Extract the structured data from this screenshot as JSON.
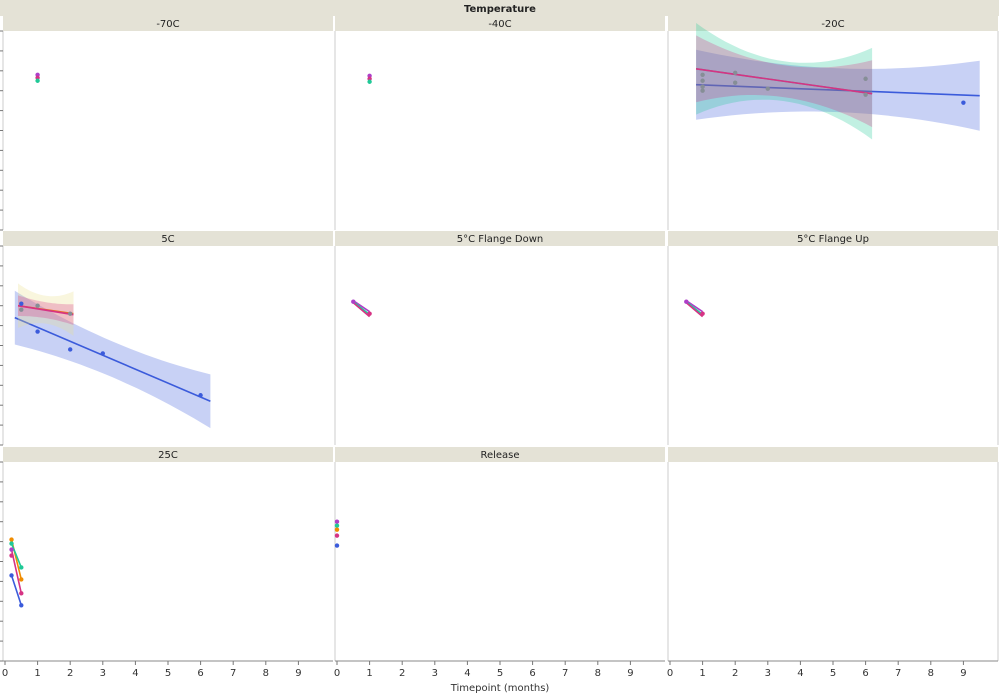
{
  "chart_data": {
    "type": "scatter",
    "title": "Temperature",
    "xlabel": "Timepoint (months)",
    "ylabel": "",
    "xlim": [
      0,
      10
    ],
    "ylim": [
      0,
      10
    ],
    "x_ticks": [
      0,
      1,
      2,
      3,
      4,
      5,
      6,
      7,
      8,
      9
    ],
    "grid": false,
    "colors": [
      "#3b5bdb",
      "#d63384",
      "#20c997",
      "#f08c00",
      "#ae3ec9",
      "#868e96"
    ],
    "panels": [
      {
        "label": "-70C",
        "points": [
          {
            "x": 1,
            "y": 7.8,
            "c": 4
          },
          {
            "x": 1,
            "y": 7.65,
            "c": 1
          },
          {
            "x": 1,
            "y": 7.5,
            "c": 2
          }
        ],
        "fits": []
      },
      {
        "label": "-40C",
        "points": [
          {
            "x": 1,
            "y": 7.75,
            "c": 4
          },
          {
            "x": 1,
            "y": 7.6,
            "c": 1
          },
          {
            "x": 1,
            "y": 7.45,
            "c": 2
          }
        ],
        "fits": []
      },
      {
        "label": "-20C",
        "points": [
          {
            "x": 1,
            "y": 7.8,
            "c": 5
          },
          {
            "x": 1,
            "y": 7.5,
            "c": 5
          },
          {
            "x": 1,
            "y": 7.2,
            "c": 5
          },
          {
            "x": 1,
            "y": 7.0,
            "c": 5
          },
          {
            "x": 2,
            "y": 7.9,
            "c": 5
          },
          {
            "x": 2,
            "y": 7.4,
            "c": 5
          },
          {
            "x": 3,
            "y": 7.1,
            "c": 5
          },
          {
            "x": 6,
            "y": 7.6,
            "c": 5
          },
          {
            "x": 6,
            "y": 6.8,
            "c": 5
          },
          {
            "x": 9,
            "y": 6.4,
            "c": 0
          }
        ],
        "fits": [
          {
            "x0": 0.8,
            "y0": 7.3,
            "x1": 9.5,
            "y1": 6.75,
            "c": 0,
            "band": 1.1,
            "flare": 0.6,
            "fill": "#3b5bdb"
          },
          {
            "x0": 0.8,
            "y0": 8.1,
            "x1": 6.2,
            "y1": 6.85,
            "c": 2,
            "band": 1.0,
            "flare": 1.3,
            "fill": "#20c997"
          },
          {
            "x0": 0.8,
            "y0": 8.1,
            "x1": 6.2,
            "y1": 6.85,
            "c": 1,
            "band": 0.8,
            "flare": 1.1,
            "fill": "#d63384"
          }
        ]
      },
      {
        "label": "5C",
        "points": [
          {
            "x": 0.5,
            "y": 7.1,
            "c": 0
          },
          {
            "x": 0.5,
            "y": 6.8,
            "c": 5
          },
          {
            "x": 1,
            "y": 5.7,
            "c": 0
          },
          {
            "x": 1,
            "y": 7.0,
            "c": 5
          },
          {
            "x": 2,
            "y": 4.8,
            "c": 0
          },
          {
            "x": 2,
            "y": 6.6,
            "c": 5
          },
          {
            "x": 3,
            "y": 4.6,
            "c": 0
          },
          {
            "x": 6,
            "y": 2.5,
            "c": 0
          }
        ],
        "fits": [
          {
            "x0": 0.3,
            "y0": 6.4,
            "x1": 6.3,
            "y1": 2.2,
            "c": 0,
            "band": 0.9,
            "flare": 0.5,
            "fill": "#3b5bdb"
          },
          {
            "x0": 0.4,
            "y0": 7.0,
            "x1": 2.1,
            "y1": 6.6,
            "c": 3,
            "band": 0.7,
            "flare": 0.6,
            "fill": "#e8e08a"
          },
          {
            "x0": 0.4,
            "y0": 7.0,
            "x1": 2.1,
            "y1": 6.55,
            "c": 1,
            "band": 0.4,
            "flare": 0.3,
            "fill": "#d63384"
          }
        ]
      },
      {
        "label": "5°C Flange Down",
        "points": [
          {
            "x": 0.5,
            "y": 7.2,
            "c": 4
          },
          {
            "x": 1,
            "y": 6.6,
            "c": 1
          }
        ],
        "lines": [
          {
            "x0": 0.5,
            "y0": 7.25,
            "x1": 1,
            "y1": 6.7,
            "c": 4
          },
          {
            "x0": 0.5,
            "y0": 7.2,
            "x1": 1,
            "y1": 6.55,
            "c": 2
          },
          {
            "x0": 0.5,
            "y0": 7.15,
            "x1": 1,
            "y1": 6.45,
            "c": 1
          }
        ],
        "fits": []
      },
      {
        "label": "5°C Flange Up",
        "points": [
          {
            "x": 0.5,
            "y": 7.2,
            "c": 4
          },
          {
            "x": 1,
            "y": 6.6,
            "c": 1
          }
        ],
        "lines": [
          {
            "x0": 0.5,
            "y0": 7.25,
            "x1": 1,
            "y1": 6.7,
            "c": 4
          },
          {
            "x0": 0.5,
            "y0": 7.2,
            "x1": 1,
            "y1": 6.55,
            "c": 2
          },
          {
            "x0": 0.5,
            "y0": 7.15,
            "x1": 1,
            "y1": 6.45,
            "c": 1
          }
        ],
        "fits": []
      },
      {
        "label": "25C",
        "points": [
          {
            "x": 0.2,
            "y": 6.1,
            "c": 3
          },
          {
            "x": 0.2,
            "y": 5.9,
            "c": 2
          },
          {
            "x": 0.2,
            "y": 5.6,
            "c": 4
          },
          {
            "x": 0.2,
            "y": 5.3,
            "c": 1
          },
          {
            "x": 0.2,
            "y": 4.3,
            "c": 0
          },
          {
            "x": 0.5,
            "y": 4.7,
            "c": 2
          },
          {
            "x": 0.5,
            "y": 4.1,
            "c": 3
          },
          {
            "x": 0.5,
            "y": 3.4,
            "c": 1
          },
          {
            "x": 0.5,
            "y": 2.8,
            "c": 0
          }
        ],
        "lines": [
          {
            "x0": 0.2,
            "y0": 6.1,
            "x1": 0.5,
            "y1": 4.1,
            "c": 3
          },
          {
            "x0": 0.2,
            "y0": 5.9,
            "x1": 0.5,
            "y1": 4.7,
            "c": 2
          },
          {
            "x0": 0.2,
            "y0": 5.6,
            "x1": 0.5,
            "y1": 3.4,
            "c": 1
          },
          {
            "x0": 0.2,
            "y0": 4.3,
            "x1": 0.5,
            "y1": 2.8,
            "c": 0
          }
        ],
        "fits": []
      },
      {
        "label": "Release",
        "points": [
          {
            "x": 0,
            "y": 7.0,
            "c": 4
          },
          {
            "x": 0,
            "y": 6.8,
            "c": 2
          },
          {
            "x": 0,
            "y": 6.6,
            "c": 3
          },
          {
            "x": 0,
            "y": 6.3,
            "c": 1
          },
          {
            "x": 0,
            "y": 5.8,
            "c": 0
          }
        ],
        "fits": []
      },
      {
        "label": "",
        "points": [],
        "fits": []
      }
    ]
  }
}
